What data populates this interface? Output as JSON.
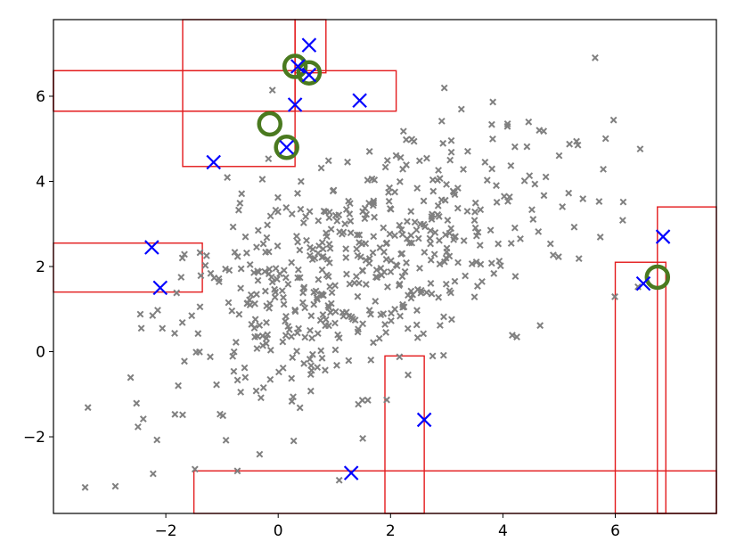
{
  "chart_data": {
    "type": "scatter",
    "title": "",
    "xlabel": "",
    "ylabel": "",
    "xlim": [
      -4.0,
      7.8
    ],
    "ylim": [
      -3.8,
      7.8
    ],
    "grid": false,
    "xticks": [
      -2,
      0,
      2,
      4,
      6
    ],
    "yticks": [
      -2,
      0,
      2,
      4,
      6
    ],
    "xtick_labels": [
      "−2",
      "0",
      "2",
      "4",
      "6"
    ],
    "ytick_labels": [
      "−2",
      "0",
      "2",
      "4",
      "6"
    ],
    "colors": {
      "background_points": "#808080",
      "blue_x": "#0000ff",
      "circles": "#4a7a1f",
      "rects": "#e31a1c"
    },
    "background_points": {
      "description_marker": "small gray x",
      "count_visible": "approximately 560",
      "distribution": "bivariate normal, mean approx (1.5, 2.0), sd x approx 1.9, sd y approx 1.7, correlation approx 0.55",
      "seed": 7
    },
    "blue_x_points": [
      [
        0.55,
        7.2
      ],
      [
        0.35,
        6.7
      ],
      [
        0.55,
        6.5
      ],
      [
        1.45,
        5.9
      ],
      [
        0.3,
        5.8
      ],
      [
        0.15,
        4.8
      ],
      [
        -1.15,
        4.45
      ],
      [
        -2.25,
        2.45
      ],
      [
        -2.1,
        1.5
      ],
      [
        6.85,
        2.7
      ],
      [
        6.5,
        1.6
      ],
      [
        2.6,
        -1.6
      ],
      [
        1.3,
        -2.85
      ]
    ],
    "circle_points": [
      [
        0.3,
        6.7
      ],
      [
        0.55,
        6.55
      ],
      [
        -0.15,
        5.35
      ],
      [
        0.15,
        4.8
      ],
      [
        6.75,
        1.75
      ]
    ],
    "rectangles": [
      {
        "x0": -1.7,
        "x1": 0.3,
        "y0": 4.35,
        "y1": 7.8
      },
      {
        "x0": 0.3,
        "x1": 0.85,
        "y0": 6.55,
        "y1": 7.8
      },
      {
        "x0": -4.0,
        "x1": 0.3,
        "y0": 5.65,
        "y1": 6.6
      },
      {
        "x0": -4.0,
        "x1": 2.1,
        "y0": 5.65,
        "y1": 6.6
      },
      {
        "x0": -4.0,
        "x1": -1.35,
        "y0": 1.4,
        "y1": 2.55
      },
      {
        "x0": 1.9,
        "x1": 2.6,
        "y0": -3.8,
        "y1": -0.1
      },
      {
        "x0": -1.5,
        "x1": 7.8,
        "y0": -3.8,
        "y1": -2.8
      },
      {
        "x0": 6.0,
        "x1": 6.9,
        "y0": -3.8,
        "y1": 2.1
      },
      {
        "x0": 6.75,
        "x1": 7.8,
        "y0": -3.8,
        "y1": 3.4
      }
    ]
  }
}
